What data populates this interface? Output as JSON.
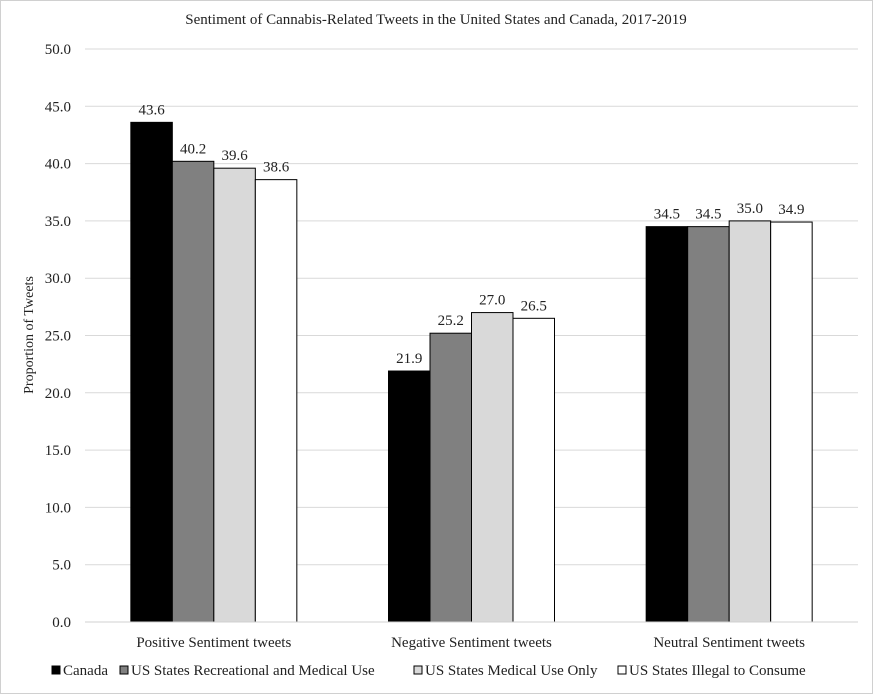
{
  "chart_data": {
    "type": "bar",
    "title": "Sentiment of Cannabis-Related Tweets in the United States and Canada, 2017-2019",
    "xlabel": "",
    "ylabel": "Proportion of Tweets",
    "ylim": [
      0,
      50
    ],
    "ytick_step": 5,
    "ytick_labels": [
      "0.0",
      "5.0",
      "10.0",
      "15.0",
      "20.0",
      "25.0",
      "30.0",
      "35.0",
      "40.0",
      "45.0",
      "50.0"
    ],
    "grid": true,
    "legend_position": "bottom",
    "categories": [
      "Positive Sentiment tweets",
      "Negative Sentiment tweets",
      "Neutral Sentiment tweets"
    ],
    "series": [
      {
        "name": "Canada",
        "color": "#000000",
        "values": [
          43.6,
          21.9,
          34.5
        ],
        "labels": [
          "43.6",
          "21.9",
          "34.5"
        ]
      },
      {
        "name": "US States Recreational and Medical Use",
        "color": "#808080",
        "values": [
          40.2,
          25.2,
          34.5
        ],
        "labels": [
          "40.2",
          "25.2",
          "34.5"
        ]
      },
      {
        "name": "US States Medical Use Only",
        "color": "#d9d9d9",
        "values": [
          39.6,
          27.0,
          35.0
        ],
        "labels": [
          "39.6",
          "27.0",
          "35.0"
        ]
      },
      {
        "name": "US States Illegal to Consume",
        "color": "#ffffff",
        "values": [
          38.6,
          26.5,
          34.9
        ],
        "labels": [
          "38.6",
          "26.5",
          "34.9"
        ]
      }
    ]
  }
}
